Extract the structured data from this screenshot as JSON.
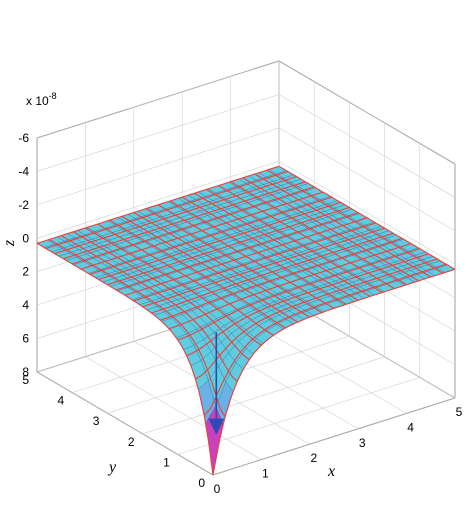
{
  "chart_data": {
    "type": "surface",
    "xlabel": "x",
    "ylabel": "y",
    "zlabel": "z",
    "z_scale_label": "x 10",
    "z_scale_exponent": "-8",
    "z_axis_direction": "reversed",
    "x_ticks": [
      "0",
      "1",
      "2",
      "3",
      "4",
      "5"
    ],
    "y_ticks": [
      "0",
      "1",
      "2",
      "3",
      "4",
      "5"
    ],
    "z_ticks": [
      "-6",
      "-4",
      "-2",
      "0",
      "2",
      "4",
      "6",
      "8"
    ],
    "xlim": [
      0,
      5
    ],
    "ylim": [
      0,
      5
    ],
    "zlim": [
      -6,
      8
    ],
    "grid": true,
    "surface": {
      "fine_mesh_color": "#5ecde0",
      "fine_mesh_edge_color": "#2c3e8c",
      "coarse_grid_color": "#e8413c",
      "singularity_colors": [
        "#c941bd",
        "#6ab1e6"
      ],
      "deflection_at_origin": 8,
      "edge_value": 0.3
    },
    "arrow": {
      "color": "#2a4ab4",
      "from_z": 0,
      "to_z": 6,
      "at": [
        0,
        0
      ]
    }
  }
}
